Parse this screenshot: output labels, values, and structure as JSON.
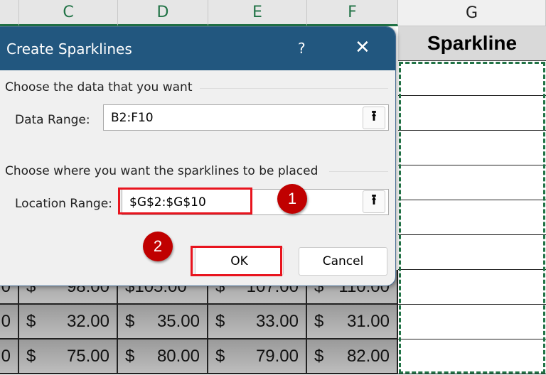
{
  "columns": [
    "C",
    "D",
    "E",
    "F",
    "G"
  ],
  "header_cell": "Sparkline",
  "rows": [
    [
      "0",
      "$",
      "98.00",
      "$105.00",
      "",
      "$",
      "107.00",
      "$",
      "110.00"
    ],
    [
      "0",
      "$",
      "32.00",
      "$",
      "35.00",
      "$",
      "33.00",
      "$",
      "31.00"
    ],
    [
      "0",
      "$",
      "75.00",
      "$",
      "80.00",
      "$",
      "79.00",
      "$",
      "82.00"
    ]
  ],
  "dialog": {
    "title": "Create Sparklines",
    "help": "?",
    "close": "✕",
    "section1": "Choose the data that you want",
    "data_range_label": "Data Range:",
    "data_range_value": "B2:F10",
    "section2": "Choose where you want the sparklines to be placed",
    "location_label": "Location Range:",
    "location_value": "$G$2:$G$10",
    "ok": "OK",
    "cancel": "Cancel",
    "upload_icon": "⭱"
  },
  "annotations": {
    "step1": "1",
    "step2": "2",
    "color": "#c00000"
  },
  "colors": {
    "accent": "#217346",
    "title_bar": "#22577f",
    "highlight": "#e8141e"
  }
}
